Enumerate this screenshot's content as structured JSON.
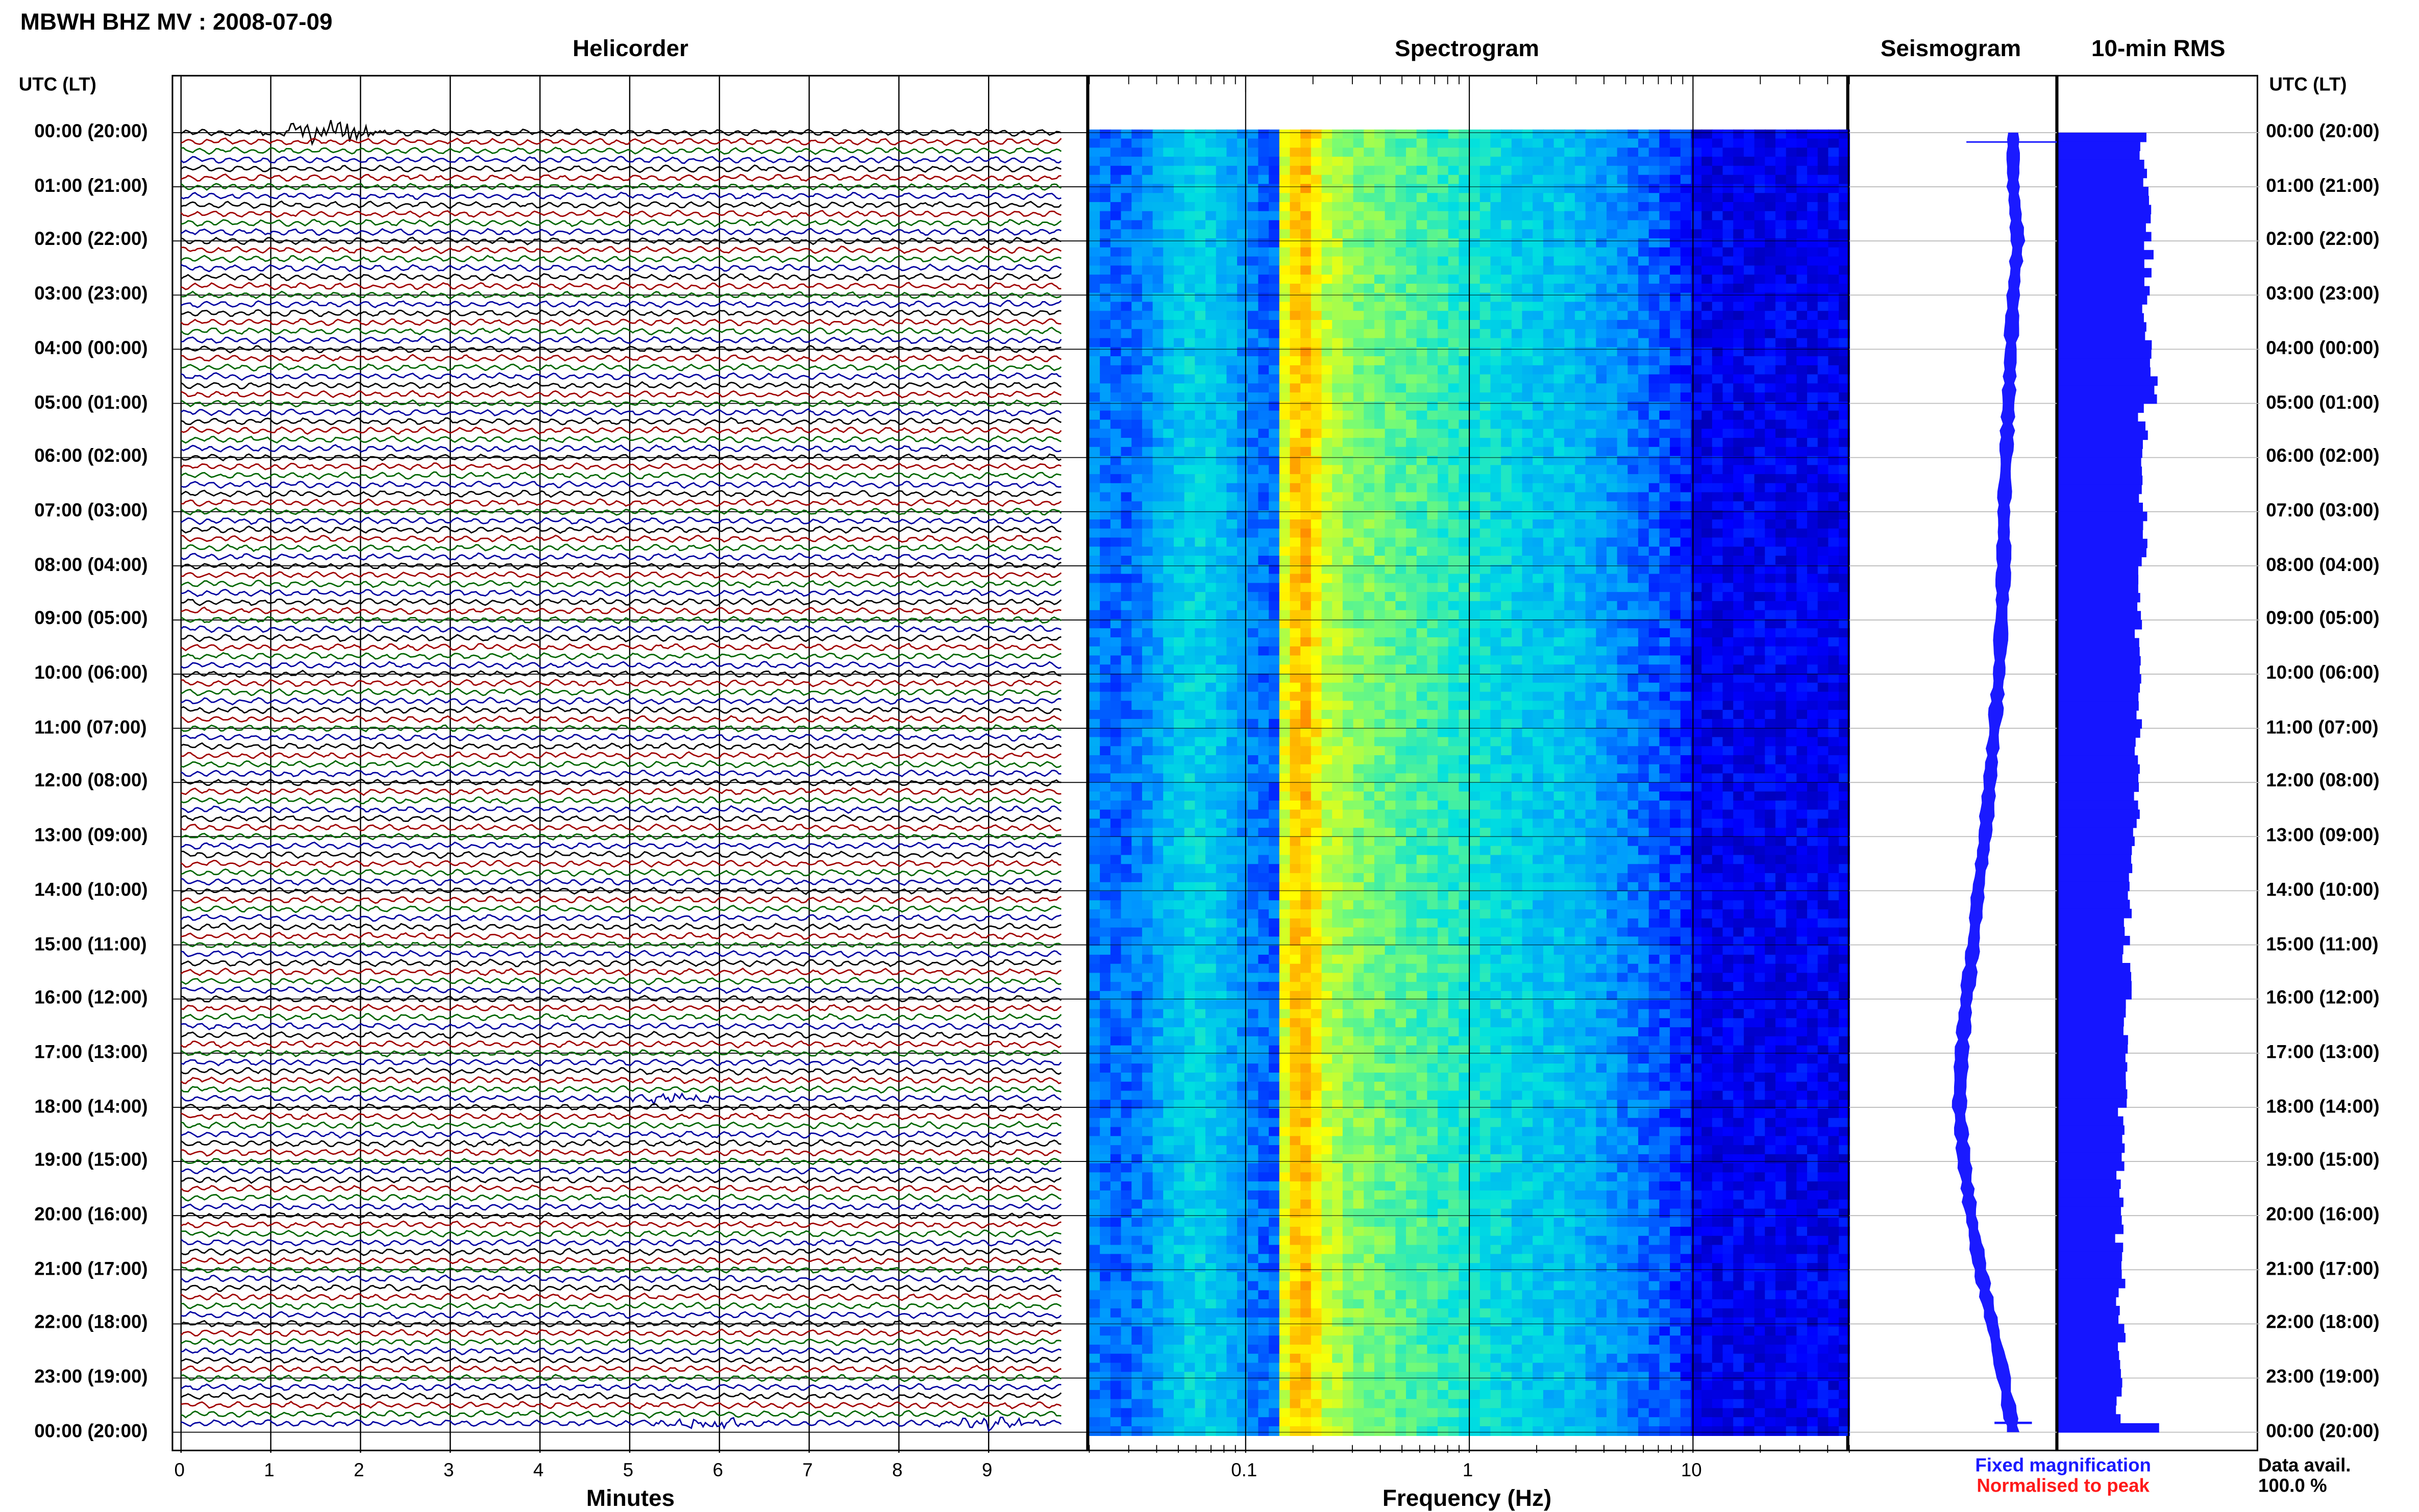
{
  "header": {
    "station_title": "MBWH BHZ MV : 2008-07-09"
  },
  "panels": {
    "helicorder": {
      "title": "Helicorder",
      "xlabel": "Minutes"
    },
    "spectrogram": {
      "title": "Spectrogram",
      "xlabel": "Frequency (Hz)"
    },
    "seismogram": {
      "title": "Seismogram"
    },
    "rms": {
      "title": "10-min RMS"
    }
  },
  "left_axis": {
    "header": "UTC (LT)",
    "labels": [
      "00:00 (20:00)",
      "01:00 (21:00)",
      "02:00 (22:00)",
      "03:00 (23:00)",
      "04:00 (00:00)",
      "05:00 (01:00)",
      "06:00 (02:00)",
      "07:00 (03:00)",
      "08:00 (04:00)",
      "09:00 (05:00)",
      "10:00 (06:00)",
      "11:00 (07:00)",
      "12:00 (08:00)",
      "13:00 (09:00)",
      "14:00 (10:00)",
      "15:00 (11:00)",
      "16:00 (12:00)",
      "17:00 (13:00)",
      "18:00 (14:00)",
      "19:00 (15:00)",
      "20:00 (16:00)",
      "21:00 (17:00)",
      "22:00 (18:00)",
      "23:00 (19:00)",
      "00:00 (20:00)"
    ]
  },
  "right_axis": {
    "header": "UTC (LT)",
    "labels": [
      "00:00 (20:00)",
      "01:00 (21:00)",
      "02:00 (22:00)",
      "03:00 (23:00)",
      "04:00 (00:00)",
      "05:00 (01:00)",
      "06:00 (02:00)",
      "07:00 (03:00)",
      "08:00 (04:00)",
      "09:00 (05:00)",
      "10:00 (06:00)",
      "11:00 (07:00)",
      "12:00 (08:00)",
      "13:00 (09:00)",
      "14:00 (10:00)",
      "15:00 (11:00)",
      "16:00 (12:00)",
      "17:00 (13:00)",
      "18:00 (14:00)",
      "19:00 (15:00)",
      "20:00 (16:00)",
      "21:00 (17:00)",
      "22:00 (18:00)",
      "23:00 (19:00)",
      "00:00 (20:00)"
    ]
  },
  "legend": {
    "fixed": "Fixed magnification",
    "normalised": "Normalised to peak",
    "fixed_color": "#1a1aff",
    "normalised_color": "#ff1a1a"
  },
  "data_avail": {
    "label": "Data avail.",
    "value": "100.0 %"
  },
  "chart_data": [
    {
      "type": "line",
      "name": "helicorder",
      "xlabel": "Minutes",
      "x_ticks": [
        "0",
        "1",
        "2",
        "3",
        "4",
        "5",
        "6",
        "7",
        "8",
        "9"
      ],
      "xlim": [
        0,
        10
      ],
      "trace_colors": [
        "#000000",
        "#a00000",
        "#006600",
        "#0000a0"
      ],
      "traces_per_hour": 6,
      "events": [
        {
          "hour": 0.0,
          "minute": 1.6,
          "amplitude": "large"
        },
        {
          "hour": 17.8,
          "minute": 5.5,
          "amplitude": "medium"
        },
        {
          "hour": 23.8,
          "minute": 5.8,
          "amplitude": "medium"
        },
        {
          "hour": 23.8,
          "minute": 9.0,
          "amplitude": "medium"
        }
      ]
    },
    {
      "type": "heatmap",
      "name": "spectrogram",
      "xlabel": "Frequency (Hz)",
      "x_scale": "log",
      "x_ticks": [
        "0.1",
        "1",
        "10"
      ],
      "xlim": [
        0.02,
        50
      ],
      "peak_band_hz": [
        0.15,
        0.25
      ],
      "colormap": [
        "#00008b",
        "#0000ff",
        "#0096ff",
        "#00e0e0",
        "#7cfc70",
        "#ffff00",
        "#ff8c00",
        "#ff0000"
      ]
    },
    {
      "type": "line",
      "name": "seismogram",
      "color": "#1a1aff",
      "drift": [
        0.5,
        0.5,
        0.52,
        0.5,
        0.49,
        0.48,
        0.47,
        0.46,
        0.46,
        0.45,
        0.44,
        0.42,
        0.4,
        0.38,
        0.35,
        0.33,
        0.3,
        0.28,
        0.27,
        0.29,
        0.32,
        0.36,
        0.41,
        0.46,
        0.5
      ]
    },
    {
      "type": "bar",
      "name": "10-min RMS",
      "color": "#1515ff",
      "orientation": "horizontal",
      "hourly_level": [
        0.42,
        0.44,
        0.45,
        0.44,
        0.47,
        0.42,
        0.41,
        0.42,
        0.4,
        0.4,
        0.41,
        0.39,
        0.38,
        0.37,
        0.35,
        0.34,
        0.33,
        0.32,
        0.32,
        0.31,
        0.3,
        0.31,
        0.32,
        0.31,
        0.5
      ]
    }
  ]
}
